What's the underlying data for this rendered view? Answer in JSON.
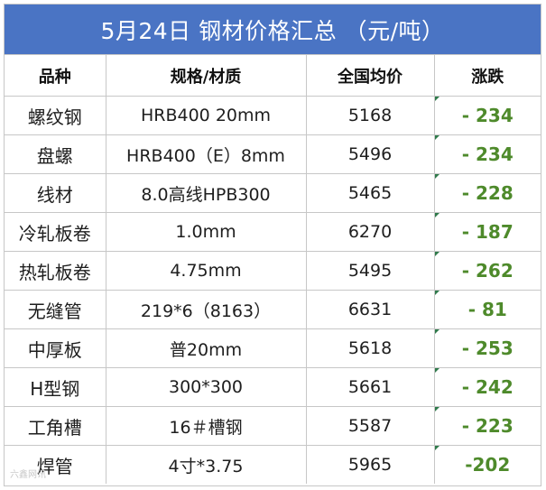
{
  "title": "5月24日 钢材价格汇总 （元/吨）",
  "headers": {
    "variety": "品种",
    "spec": "规格/材质",
    "price": "全国均价",
    "change": "涨跌"
  },
  "rows": [
    {
      "variety": "螺纹钢",
      "spec": "HRB400 20mm",
      "price": "5168",
      "change": "- 234"
    },
    {
      "variety": "盘螺",
      "spec": "HRB400（E）8mm",
      "price": "5496",
      "change": "- 234"
    },
    {
      "variety": "线材",
      "spec": "8.0高线HPB300",
      "price": "5465",
      "change": "- 228"
    },
    {
      "variety": "冷轧板卷",
      "spec": "1.0mm",
      "price": "6270",
      "change": "- 187"
    },
    {
      "variety": "热轧板卷",
      "spec": "4.75mm",
      "price": "5495",
      "change": "- 262"
    },
    {
      "variety": "无缝管",
      "spec": "219*6（8163）",
      "price": "6631",
      "change": "- 81"
    },
    {
      "variety": "中厚板",
      "spec": "普20mm",
      "price": "5618",
      "change": "- 253"
    },
    {
      "variety": "H型钢",
      "spec": "300*300",
      "price": "5661",
      "change": "- 242"
    },
    {
      "variety": "工角槽",
      "spec": "16＃槽钢",
      "price": "5587",
      "change": "- 223"
    },
    {
      "variety": "焊管",
      "spec": "4寸*3.75",
      "price": "5965",
      "change": "-202"
    }
  ],
  "watermark": "六鑫网讯",
  "colors": {
    "title_bg": "#4a74c4",
    "change_text": "#4e8a2b",
    "grid": "#c7c7c7"
  }
}
